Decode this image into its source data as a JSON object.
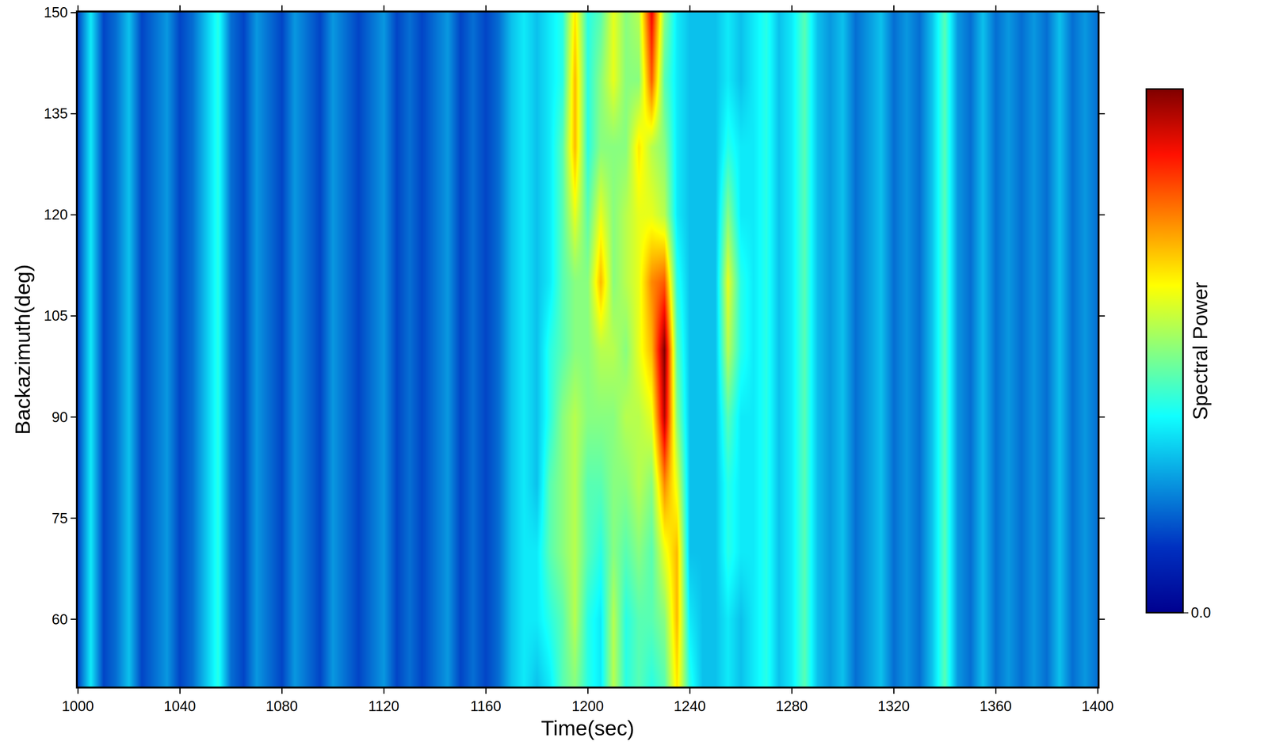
{
  "chart_data": {
    "type": "heatmap",
    "x_label": "Time(sec)",
    "y_label": "Backazimuth(deg)",
    "xlim": [
      1000,
      1400
    ],
    "xticks": [
      1000,
      1040,
      1080,
      1120,
      1160,
      1200,
      1240,
      1280,
      1320,
      1360,
      1400
    ],
    "ylim": [
      50,
      150
    ],
    "yticks": [
      60,
      75,
      90,
      105,
      120,
      135,
      150
    ],
    "x": [
      1000,
      1005,
      1010,
      1015,
      1020,
      1025,
      1030,
      1035,
      1040,
      1045,
      1050,
      1055,
      1060,
      1065,
      1070,
      1075,
      1080,
      1085,
      1090,
      1095,
      1100,
      1105,
      1110,
      1115,
      1120,
      1125,
      1130,
      1135,
      1140,
      1145,
      1150,
      1155,
      1160,
      1165,
      1170,
      1175,
      1180,
      1185,
      1190,
      1195,
      1200,
      1205,
      1210,
      1215,
      1220,
      1225,
      1230,
      1235,
      1240,
      1245,
      1250,
      1255,
      1260,
      1265,
      1270,
      1275,
      1280,
      1285,
      1290,
      1295,
      1300,
      1305,
      1310,
      1315,
      1320,
      1325,
      1330,
      1335,
      1340,
      1345,
      1350,
      1355,
      1360,
      1365,
      1370,
      1375,
      1380,
      1385,
      1390,
      1395,
      1400
    ],
    "y": [
      50,
      60,
      70,
      80,
      90,
      100,
      110,
      120,
      130,
      140,
      150
    ],
    "z": [
      [
        0.15,
        0.35,
        0.15,
        0.2,
        0.3,
        0.15,
        0.2,
        0.25,
        0.15,
        0.2,
        0.3,
        0.4,
        0.2,
        0.15,
        0.25,
        0.2,
        0.15,
        0.25,
        0.2,
        0.15,
        0.25,
        0.2,
        0.15,
        0.2,
        0.25,
        0.15,
        0.2,
        0.15,
        0.2,
        0.25,
        0.15,
        0.2,
        0.15,
        0.2,
        0.3,
        0.35,
        0.3,
        0.35,
        0.45,
        0.5,
        0.4,
        0.35,
        0.55,
        0.4,
        0.45,
        0.4,
        0.45,
        0.65,
        0.4,
        0.3,
        0.3,
        0.35,
        0.3,
        0.35,
        0.4,
        0.3,
        0.35,
        0.45,
        0.3,
        0.25,
        0.3,
        0.2,
        0.25,
        0.3,
        0.2,
        0.25,
        0.2,
        0.3,
        0.45,
        0.25,
        0.2,
        0.3,
        0.2,
        0.25,
        0.2,
        0.25,
        0.2,
        0.3,
        0.2,
        0.25,
        0.2
      ],
      [
        0.15,
        0.35,
        0.15,
        0.2,
        0.3,
        0.15,
        0.2,
        0.25,
        0.15,
        0.2,
        0.3,
        0.4,
        0.2,
        0.15,
        0.25,
        0.2,
        0.15,
        0.25,
        0.2,
        0.15,
        0.25,
        0.2,
        0.15,
        0.2,
        0.25,
        0.15,
        0.2,
        0.15,
        0.2,
        0.25,
        0.15,
        0.2,
        0.15,
        0.2,
        0.3,
        0.35,
        0.35,
        0.4,
        0.45,
        0.55,
        0.4,
        0.35,
        0.55,
        0.4,
        0.45,
        0.45,
        0.5,
        0.7,
        0.35,
        0.3,
        0.3,
        0.35,
        0.3,
        0.35,
        0.4,
        0.3,
        0.35,
        0.45,
        0.3,
        0.25,
        0.3,
        0.2,
        0.25,
        0.3,
        0.2,
        0.25,
        0.2,
        0.3,
        0.45,
        0.25,
        0.2,
        0.3,
        0.2,
        0.25,
        0.2,
        0.25,
        0.2,
        0.3,
        0.2,
        0.25,
        0.2
      ],
      [
        0.15,
        0.35,
        0.15,
        0.2,
        0.3,
        0.15,
        0.2,
        0.25,
        0.15,
        0.2,
        0.3,
        0.4,
        0.2,
        0.15,
        0.25,
        0.2,
        0.15,
        0.25,
        0.2,
        0.15,
        0.25,
        0.2,
        0.15,
        0.2,
        0.25,
        0.15,
        0.2,
        0.15,
        0.2,
        0.25,
        0.15,
        0.2,
        0.15,
        0.2,
        0.3,
        0.35,
        0.35,
        0.45,
        0.5,
        0.55,
        0.45,
        0.4,
        0.5,
        0.45,
        0.5,
        0.45,
        0.6,
        0.7,
        0.3,
        0.3,
        0.3,
        0.4,
        0.35,
        0.35,
        0.4,
        0.3,
        0.35,
        0.45,
        0.3,
        0.25,
        0.3,
        0.2,
        0.25,
        0.3,
        0.2,
        0.25,
        0.2,
        0.3,
        0.45,
        0.25,
        0.2,
        0.3,
        0.2,
        0.25,
        0.2,
        0.25,
        0.2,
        0.3,
        0.2,
        0.25,
        0.2
      ],
      [
        0.15,
        0.35,
        0.15,
        0.2,
        0.3,
        0.15,
        0.2,
        0.25,
        0.15,
        0.2,
        0.3,
        0.4,
        0.2,
        0.15,
        0.25,
        0.2,
        0.15,
        0.25,
        0.2,
        0.15,
        0.25,
        0.2,
        0.15,
        0.2,
        0.25,
        0.15,
        0.2,
        0.15,
        0.2,
        0.25,
        0.15,
        0.2,
        0.15,
        0.2,
        0.3,
        0.35,
        0.3,
        0.45,
        0.5,
        0.55,
        0.45,
        0.45,
        0.5,
        0.5,
        0.55,
        0.5,
        0.75,
        0.6,
        0.3,
        0.3,
        0.3,
        0.4,
        0.35,
        0.35,
        0.4,
        0.3,
        0.35,
        0.45,
        0.3,
        0.25,
        0.3,
        0.2,
        0.25,
        0.3,
        0.2,
        0.25,
        0.2,
        0.3,
        0.45,
        0.25,
        0.2,
        0.3,
        0.2,
        0.25,
        0.2,
        0.25,
        0.2,
        0.3,
        0.2,
        0.25,
        0.2
      ],
      [
        0.15,
        0.35,
        0.15,
        0.2,
        0.3,
        0.15,
        0.2,
        0.25,
        0.15,
        0.2,
        0.3,
        0.4,
        0.2,
        0.15,
        0.25,
        0.2,
        0.15,
        0.25,
        0.2,
        0.15,
        0.25,
        0.2,
        0.15,
        0.2,
        0.25,
        0.15,
        0.2,
        0.15,
        0.2,
        0.25,
        0.15,
        0.2,
        0.15,
        0.2,
        0.3,
        0.35,
        0.3,
        0.4,
        0.5,
        0.55,
        0.5,
        0.5,
        0.5,
        0.55,
        0.55,
        0.6,
        0.95,
        0.5,
        0.3,
        0.3,
        0.3,
        0.45,
        0.35,
        0.35,
        0.4,
        0.3,
        0.35,
        0.45,
        0.3,
        0.25,
        0.3,
        0.2,
        0.25,
        0.3,
        0.2,
        0.25,
        0.2,
        0.3,
        0.45,
        0.25,
        0.2,
        0.3,
        0.2,
        0.25,
        0.2,
        0.25,
        0.2,
        0.3,
        0.2,
        0.25,
        0.2
      ],
      [
        0.15,
        0.35,
        0.15,
        0.2,
        0.3,
        0.15,
        0.2,
        0.25,
        0.15,
        0.2,
        0.3,
        0.4,
        0.2,
        0.15,
        0.25,
        0.2,
        0.15,
        0.25,
        0.2,
        0.15,
        0.25,
        0.2,
        0.15,
        0.2,
        0.25,
        0.15,
        0.2,
        0.15,
        0.2,
        0.25,
        0.15,
        0.2,
        0.15,
        0.2,
        0.3,
        0.35,
        0.3,
        0.4,
        0.45,
        0.5,
        0.5,
        0.55,
        0.55,
        0.5,
        0.6,
        0.7,
        1.0,
        0.45,
        0.3,
        0.3,
        0.3,
        0.55,
        0.4,
        0.35,
        0.4,
        0.3,
        0.35,
        0.45,
        0.3,
        0.25,
        0.3,
        0.2,
        0.25,
        0.3,
        0.2,
        0.25,
        0.2,
        0.3,
        0.45,
        0.25,
        0.2,
        0.3,
        0.2,
        0.25,
        0.2,
        0.25,
        0.2,
        0.3,
        0.2,
        0.25,
        0.2
      ],
      [
        0.15,
        0.35,
        0.15,
        0.2,
        0.3,
        0.15,
        0.2,
        0.25,
        0.15,
        0.2,
        0.3,
        0.4,
        0.2,
        0.15,
        0.25,
        0.2,
        0.15,
        0.25,
        0.2,
        0.15,
        0.25,
        0.2,
        0.15,
        0.2,
        0.25,
        0.15,
        0.2,
        0.15,
        0.2,
        0.25,
        0.15,
        0.2,
        0.15,
        0.2,
        0.3,
        0.35,
        0.3,
        0.35,
        0.45,
        0.5,
        0.5,
        0.7,
        0.5,
        0.55,
        0.6,
        0.75,
        0.8,
        0.4,
        0.3,
        0.3,
        0.3,
        0.6,
        0.4,
        0.35,
        0.4,
        0.3,
        0.35,
        0.45,
        0.3,
        0.25,
        0.3,
        0.2,
        0.25,
        0.3,
        0.2,
        0.25,
        0.2,
        0.3,
        0.45,
        0.25,
        0.2,
        0.3,
        0.2,
        0.25,
        0.2,
        0.25,
        0.2,
        0.3,
        0.2,
        0.25,
        0.2
      ],
      [
        0.15,
        0.35,
        0.15,
        0.2,
        0.3,
        0.15,
        0.2,
        0.25,
        0.15,
        0.2,
        0.3,
        0.4,
        0.2,
        0.15,
        0.25,
        0.2,
        0.15,
        0.25,
        0.2,
        0.15,
        0.25,
        0.2,
        0.15,
        0.2,
        0.25,
        0.15,
        0.2,
        0.15,
        0.2,
        0.25,
        0.15,
        0.2,
        0.15,
        0.2,
        0.3,
        0.35,
        0.3,
        0.35,
        0.45,
        0.6,
        0.45,
        0.6,
        0.5,
        0.55,
        0.6,
        0.6,
        0.55,
        0.35,
        0.3,
        0.3,
        0.3,
        0.5,
        0.35,
        0.35,
        0.4,
        0.3,
        0.35,
        0.45,
        0.3,
        0.25,
        0.3,
        0.2,
        0.25,
        0.3,
        0.2,
        0.25,
        0.2,
        0.3,
        0.45,
        0.25,
        0.2,
        0.3,
        0.2,
        0.25,
        0.2,
        0.25,
        0.2,
        0.3,
        0.2,
        0.25,
        0.2
      ],
      [
        0.15,
        0.35,
        0.15,
        0.2,
        0.3,
        0.15,
        0.2,
        0.25,
        0.15,
        0.2,
        0.3,
        0.4,
        0.2,
        0.15,
        0.25,
        0.2,
        0.15,
        0.25,
        0.2,
        0.15,
        0.25,
        0.2,
        0.15,
        0.2,
        0.25,
        0.15,
        0.2,
        0.15,
        0.2,
        0.25,
        0.15,
        0.2,
        0.15,
        0.2,
        0.3,
        0.35,
        0.3,
        0.35,
        0.45,
        0.7,
        0.4,
        0.5,
        0.5,
        0.5,
        0.65,
        0.55,
        0.5,
        0.35,
        0.3,
        0.3,
        0.3,
        0.4,
        0.35,
        0.35,
        0.4,
        0.3,
        0.35,
        0.45,
        0.3,
        0.25,
        0.3,
        0.2,
        0.25,
        0.3,
        0.2,
        0.25,
        0.2,
        0.3,
        0.45,
        0.25,
        0.2,
        0.3,
        0.2,
        0.25,
        0.2,
        0.25,
        0.2,
        0.3,
        0.2,
        0.25,
        0.2
      ],
      [
        0.15,
        0.35,
        0.15,
        0.2,
        0.3,
        0.15,
        0.2,
        0.25,
        0.15,
        0.2,
        0.3,
        0.4,
        0.2,
        0.15,
        0.25,
        0.2,
        0.15,
        0.25,
        0.2,
        0.15,
        0.25,
        0.2,
        0.15,
        0.2,
        0.25,
        0.15,
        0.2,
        0.15,
        0.2,
        0.25,
        0.15,
        0.2,
        0.15,
        0.2,
        0.3,
        0.35,
        0.3,
        0.35,
        0.4,
        0.7,
        0.4,
        0.5,
        0.6,
        0.5,
        0.5,
        0.8,
        0.45,
        0.35,
        0.3,
        0.3,
        0.3,
        0.35,
        0.3,
        0.35,
        0.4,
        0.3,
        0.35,
        0.45,
        0.3,
        0.25,
        0.3,
        0.2,
        0.25,
        0.3,
        0.2,
        0.25,
        0.2,
        0.3,
        0.45,
        0.25,
        0.2,
        0.3,
        0.2,
        0.25,
        0.2,
        0.25,
        0.2,
        0.3,
        0.2,
        0.25,
        0.2
      ],
      [
        0.15,
        0.35,
        0.15,
        0.2,
        0.3,
        0.15,
        0.2,
        0.25,
        0.15,
        0.2,
        0.3,
        0.4,
        0.2,
        0.15,
        0.25,
        0.2,
        0.15,
        0.25,
        0.2,
        0.15,
        0.25,
        0.2,
        0.15,
        0.2,
        0.25,
        0.15,
        0.2,
        0.15,
        0.2,
        0.25,
        0.15,
        0.2,
        0.15,
        0.2,
        0.3,
        0.35,
        0.3,
        0.35,
        0.4,
        0.65,
        0.4,
        0.45,
        0.6,
        0.5,
        0.55,
        0.9,
        0.5,
        0.35,
        0.3,
        0.3,
        0.3,
        0.35,
        0.3,
        0.35,
        0.4,
        0.3,
        0.35,
        0.45,
        0.3,
        0.25,
        0.3,
        0.2,
        0.25,
        0.3,
        0.2,
        0.25,
        0.2,
        0.3,
        0.45,
        0.25,
        0.2,
        0.3,
        0.2,
        0.25,
        0.2,
        0.25,
        0.2,
        0.3,
        0.2,
        0.25,
        0.2
      ]
    ],
    "colorbar": {
      "title": "Spectral Power",
      "range": [
        0,
        1
      ],
      "ticks": [
        {
          "value": 0,
          "label": "0.0"
        }
      ]
    }
  }
}
